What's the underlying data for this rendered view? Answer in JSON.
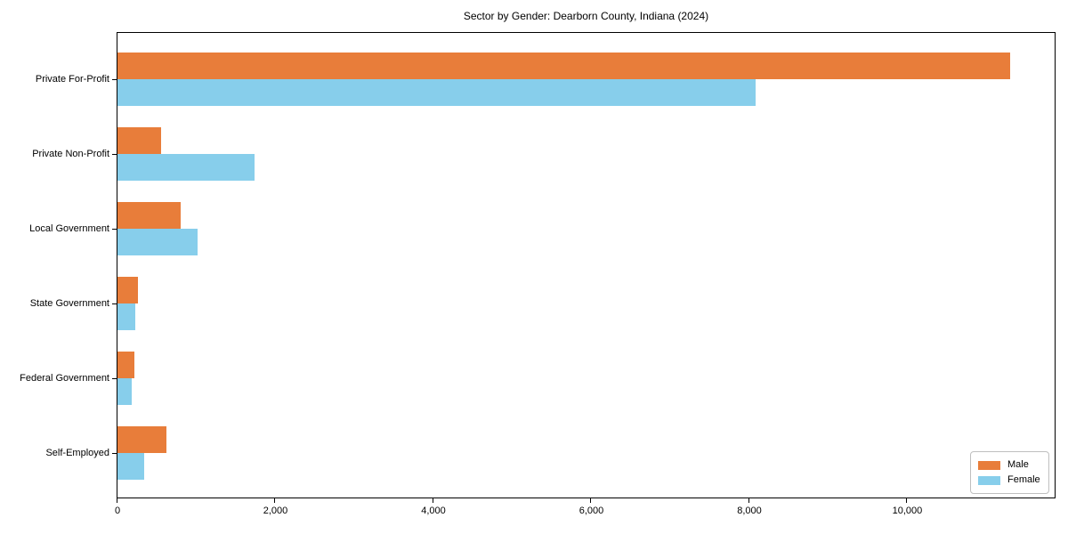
{
  "chart_data": {
    "type": "bar",
    "orientation": "horizontal",
    "title": "Sector by Gender: Dearborn County, Indiana (2024)",
    "categories": [
      "Private For-Profit",
      "Private Non-Profit",
      "Local Government",
      "State Government",
      "Federal Government",
      "Self-Employed"
    ],
    "series": [
      {
        "name": "Male",
        "color": "#e87d3a",
        "values": [
          11300,
          555,
          795,
          260,
          210,
          620
        ]
      },
      {
        "name": "Female",
        "color": "#87ceeb",
        "values": [
          8080,
          1730,
          1010,
          220,
          180,
          335
        ]
      }
    ],
    "xlabel": "",
    "ylabel": "",
    "xlim": [
      0,
      11865
    ],
    "xticks": [
      0,
      2000,
      4000,
      6000,
      8000,
      10000
    ],
    "xtick_labels": [
      "0",
      "2,000",
      "4,000",
      "6,000",
      "8,000",
      "10,000"
    ],
    "grid": false,
    "legend_position": "lower right",
    "colors": {
      "axis": "#000000",
      "text": "#000000",
      "background": "#ffffff",
      "legend_border": "#bfbfbf"
    }
  }
}
